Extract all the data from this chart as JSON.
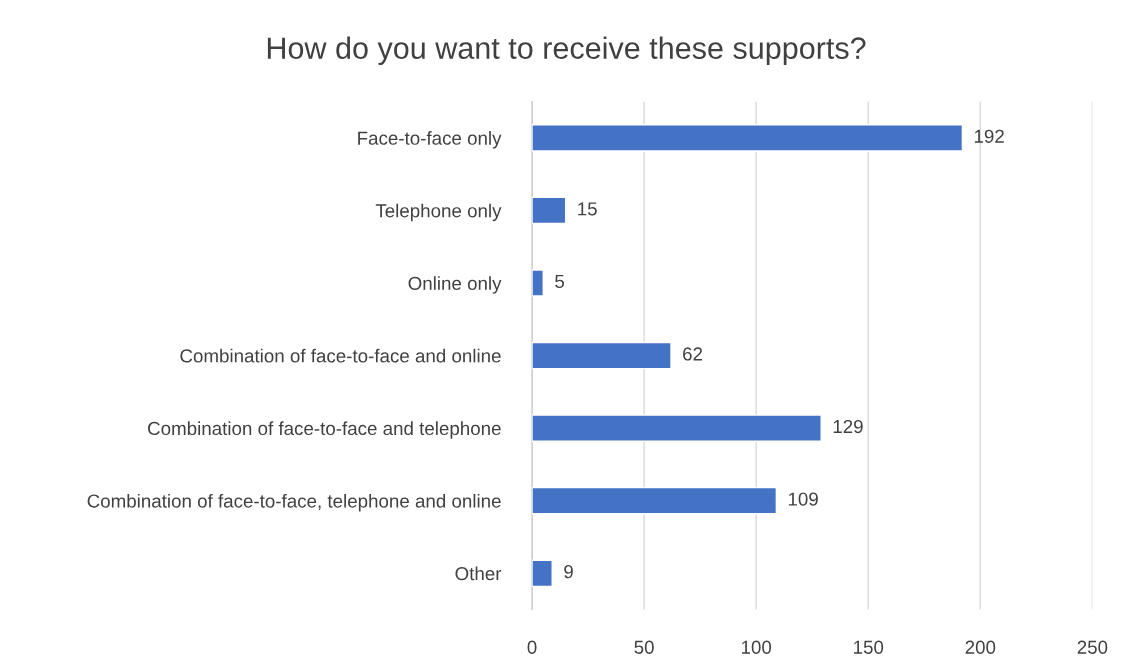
{
  "chart_data": {
    "type": "bar",
    "title": "How do you want to receive these supports?",
    "orientation": "horizontal",
    "categories": [
      "Face-to-face only",
      "Telephone only",
      "Online only",
      "Combination of face-to-face and online",
      "Combination of face-to-face and telephone",
      "Combination of face-to-face, telephone and online",
      "Other"
    ],
    "values": [
      192,
      15,
      5,
      62,
      129,
      109,
      9
    ],
    "color": "#4472c4",
    "xlim": [
      0,
      250
    ],
    "xticks": [
      0,
      50,
      100,
      150,
      200,
      250
    ],
    "grid": "x",
    "data_labels": true,
    "legend": false
  }
}
